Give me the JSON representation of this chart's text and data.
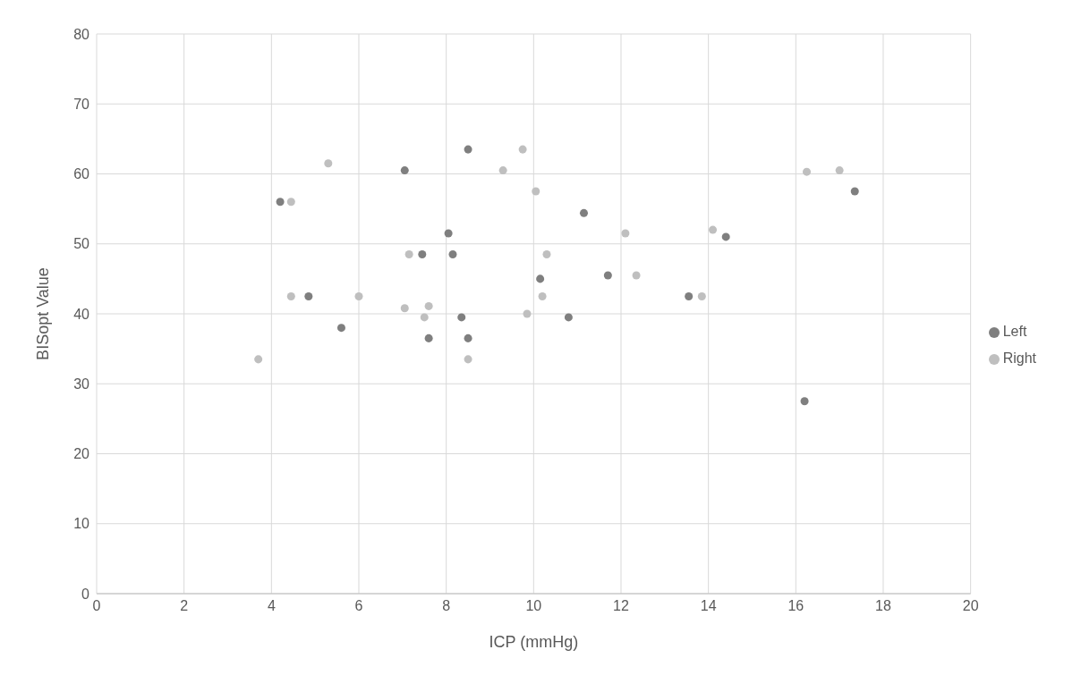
{
  "chart_data": {
    "type": "scatter",
    "xlabel": "ICP (mmHg)",
    "ylabel": "BISopt Value",
    "xlim": [
      0,
      20
    ],
    "xticks": [
      0,
      2,
      4,
      6,
      8,
      10,
      12,
      14,
      16,
      18,
      20
    ],
    "ylim": [
      0,
      80
    ],
    "yticks": [
      0,
      10,
      20,
      30,
      40,
      50,
      60,
      70,
      80
    ],
    "grid": true,
    "legend": "right",
    "marker": "circle",
    "series": [
      {
        "name": "Right",
        "color": "#bfbfbf",
        "x": [
          3.7,
          4.45,
          4.45,
          5.3,
          6.0,
          7.05,
          7.15,
          7.5,
          7.6,
          8.5,
          9.3,
          9.75,
          9.85,
          10.05,
          10.2,
          10.3,
          12.1,
          12.35,
          13.85,
          14.1,
          16.25,
          17.0
        ],
        "values": [
          33.5,
          56,
          42.5,
          61.5,
          42.5,
          40.8,
          48.5,
          39.5,
          41.1,
          33.5,
          60.5,
          63.5,
          40,
          57.5,
          42.5,
          48.5,
          51.5,
          45.5,
          42.5,
          52,
          60.3,
          60.5
        ]
      },
      {
        "name": "Left",
        "color": "#7f7f7f",
        "x": [
          4.2,
          4.85,
          5.6,
          7.05,
          7.45,
          7.6,
          8.05,
          8.15,
          8.35,
          8.5,
          8.5,
          10.15,
          10.8,
          11.15,
          11.7,
          13.55,
          14.4,
          16.2,
          17.35
        ],
        "values": [
          56,
          42.5,
          38,
          60.5,
          48.5,
          36.5,
          51.5,
          48.5,
          39.5,
          36.5,
          63.5,
          45,
          39.5,
          54.4,
          45.5,
          42.5,
          51,
          27.5,
          57.5
        ]
      }
    ]
  }
}
